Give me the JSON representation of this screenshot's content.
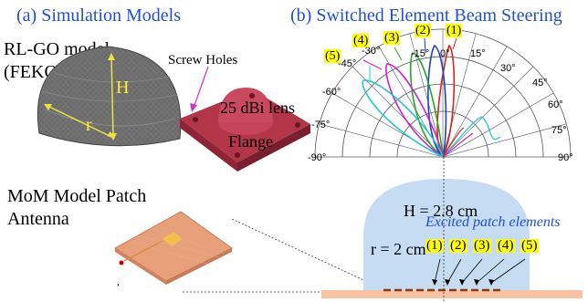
{
  "titles": {
    "left": "(a) Simulation Models",
    "right": "(b) Switched Element Beam Steering"
  },
  "rlgo": {
    "label_line1": "RL-GO model",
    "label_line2": "(FEKO)",
    "H": "H",
    "r": "r"
  },
  "lens_model": {
    "screw_holes": "Screw Holes",
    "lens_label": "25 dBi lens",
    "flange": "Flange"
  },
  "mom": {
    "label_line1": "MoM Model Patch",
    "label_line2": "Antenna"
  },
  "polar": {
    "angle_labels": [
      "-90°",
      "-75°",
      "-60°",
      "-45°",
      "-30°",
      "-15°",
      "0°",
      "15°",
      "30°",
      "45°",
      "60°",
      "75°",
      "90°"
    ],
    "beam_tags": [
      "(1)",
      "(2)",
      "(3)",
      "(4)",
      "(5)"
    ],
    "beam_colors": [
      "#e02020",
      "#1a3fd6",
      "#22aa22",
      "#d020d0",
      "#20c8d8"
    ]
  },
  "cross_section": {
    "height_label": "H = 2.8 cm",
    "radius_label": "r = 2 cm",
    "excited_label": "Excited patch elements",
    "element_tags": [
      "(1)",
      "(2)",
      "(3)",
      "(4)",
      "(5)"
    ]
  },
  "misc": {
    "comma": ","
  }
}
